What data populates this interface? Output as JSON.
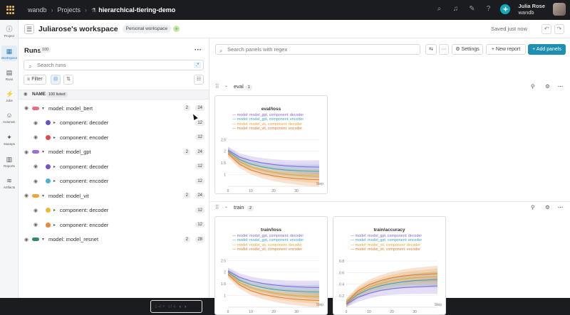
{
  "topbar": {
    "org": "wandb",
    "projects": "Projects",
    "project": "hierarchical-tiering-demo",
    "user_name": "Julia Rose",
    "user_org": "wandb"
  },
  "nav": [
    {
      "label": "Project",
      "icon": "info-icon"
    },
    {
      "label": "Workspace",
      "icon": "workspace-icon"
    },
    {
      "label": "Runs",
      "icon": "table-icon"
    },
    {
      "label": "Jobs",
      "icon": "lightning-icon"
    },
    {
      "label": "Automat.",
      "icon": "robot-icon"
    },
    {
      "label": "Sweeps",
      "icon": "broom-icon"
    },
    {
      "label": "Reports",
      "icon": "document-icon"
    },
    {
      "label": "Artifacts",
      "icon": "layers-icon"
    }
  ],
  "workspace": {
    "title": "Juliarose's workspace",
    "badge": "Personal workspace",
    "saved": "Saved just now"
  },
  "runs": {
    "title": "Runs",
    "count": "100",
    "search_placeholder": "Search runs",
    "regex_label": ".*",
    "filter_label": "Filter",
    "column_name": "NAME",
    "listed": "100 listed",
    "rows": [
      {
        "label": "model: model_bert",
        "c1": "2",
        "c2": "24",
        "color": "#e86c8a",
        "child": false
      },
      {
        "label": "component: decoder",
        "c1": "",
        "c2": "12",
        "color": "#6a4fc8",
        "child": true
      },
      {
        "label": "component: encoder",
        "c1": "",
        "c2": "12",
        "color": "#e24b4b",
        "child": true
      },
      {
        "label": "model: model_gpt",
        "c1": "2",
        "c2": "24",
        "color": "#9b6ee0",
        "child": false
      },
      {
        "label": "component: decoder",
        "c1": "",
        "c2": "12",
        "color": "#7a52cc",
        "child": true
      },
      {
        "label": "component: encoder",
        "c1": "",
        "c2": "12",
        "color": "#4bb3d6",
        "child": true
      },
      {
        "label": "model: model_vit",
        "c1": "2",
        "c2": "24",
        "color": "#f0a63c",
        "child": false
      },
      {
        "label": "component: decoder",
        "c1": "",
        "c2": "12",
        "color": "#f2b53e",
        "child": true
      },
      {
        "label": "component: encoder",
        "c1": "",
        "c2": "12",
        "color": "#e8863a",
        "child": true
      },
      {
        "label": "model: model_resnet",
        "c1": "2",
        "c2": "28",
        "color": "#2f8a6a",
        "child": false
      }
    ],
    "pager_range": "1-4",
    "pager_of": "of 4"
  },
  "panels": {
    "search_placeholder": "Search panels with regex",
    "settings": "Settings",
    "new_report": "New report",
    "add_panels": "Add panels",
    "sections": [
      {
        "name": "eval",
        "count": "1"
      },
      {
        "name": "train",
        "count": "2"
      }
    ]
  },
  "legend": [
    {
      "label": "model: model_gpt, component: decoder",
      "color": "#8b63d6"
    },
    {
      "label": "model: model_gpt, component: encoder",
      "color": "#3aa6c2"
    },
    {
      "label": "model: model_vit, component: decoder",
      "color": "#e8a534"
    },
    {
      "label": "model: model_vit, component: encoder",
      "color": "#e07a2e"
    }
  ],
  "chart_data": [
    {
      "type": "line",
      "title": "eval/loss",
      "xlabel": "Step",
      "ylim": [
        0.5,
        2.6
      ],
      "xlim": [
        0,
        40
      ],
      "xticks": [
        "0",
        "10",
        "20",
        "30"
      ],
      "yticks": [
        "1",
        "1.5",
        "2",
        "2.5"
      ],
      "series": [
        {
          "name": "model: model_gpt, component: decoder",
          "x": [
            0,
            5,
            10,
            15,
            20,
            25,
            30,
            35,
            40
          ],
          "y": [
            2.05,
            1.75,
            1.6,
            1.5,
            1.43,
            1.38,
            1.35,
            1.33,
            1.32
          ]
        },
        {
          "name": "model: model_gpt, component: encoder",
          "x": [
            0,
            5,
            10,
            15,
            20,
            25,
            30,
            35,
            40
          ],
          "y": [
            2.0,
            1.65,
            1.45,
            1.33,
            1.25,
            1.2,
            1.17,
            1.15,
            1.14
          ]
        },
        {
          "name": "model: model_vit, component: decoder",
          "x": [
            0,
            5,
            10,
            15,
            20,
            25,
            30,
            35,
            40
          ],
          "y": [
            1.95,
            1.55,
            1.33,
            1.2,
            1.1,
            1.03,
            0.98,
            0.95,
            0.93
          ]
        },
        {
          "name": "model: model_vit, component: encoder",
          "x": [
            0,
            5,
            10,
            15,
            20,
            25,
            30,
            35,
            40
          ],
          "y": [
            1.9,
            1.45,
            1.2,
            1.05,
            0.95,
            0.88,
            0.83,
            0.8,
            0.78
          ]
        }
      ]
    },
    {
      "type": "line",
      "title": "train/loss",
      "xlabel": "Step",
      "ylim": [
        0.5,
        2.6
      ],
      "xlim": [
        0,
        40
      ],
      "xticks": [
        "0",
        "10",
        "20",
        "30"
      ],
      "yticks": [
        "1",
        "1.5",
        "2",
        "2.5"
      ],
      "series": [
        {
          "name": "model: model_gpt, component: decoder",
          "x": [
            0,
            5,
            10,
            15,
            20,
            25,
            30,
            35,
            40
          ],
          "y": [
            2.05,
            1.78,
            1.62,
            1.52,
            1.45,
            1.4,
            1.37,
            1.35,
            1.34
          ]
        },
        {
          "name": "model: model_gpt, component: encoder",
          "x": [
            0,
            5,
            10,
            15,
            20,
            25,
            30,
            35,
            40
          ],
          "y": [
            2.0,
            1.66,
            1.46,
            1.34,
            1.26,
            1.21,
            1.18,
            1.16,
            1.15
          ]
        },
        {
          "name": "model: model_vit, component: decoder",
          "x": [
            0,
            5,
            10,
            15,
            20,
            25,
            30,
            35,
            40
          ],
          "y": [
            1.95,
            1.56,
            1.34,
            1.21,
            1.11,
            1.04,
            0.99,
            0.96,
            0.94
          ]
        },
        {
          "name": "model: model_vit, component: encoder",
          "x": [
            0,
            5,
            10,
            15,
            20,
            25,
            30,
            35,
            40
          ],
          "y": [
            1.9,
            1.46,
            1.21,
            1.06,
            0.96,
            0.89,
            0.84,
            0.81,
            0.79
          ]
        }
      ]
    },
    {
      "type": "line",
      "title": "train/accuracy",
      "xlabel": "Step",
      "ylim": [
        0,
        0.85
      ],
      "xlim": [
        0,
        40
      ],
      "xticks": [
        "0",
        "10",
        "20",
        "30"
      ],
      "yticks": [
        "0.2",
        "0.4",
        "0.6",
        "0.8"
      ],
      "series": [
        {
          "name": "model: model_gpt, component: decoder",
          "x": [
            0,
            5,
            10,
            15,
            20,
            25,
            30,
            35,
            40
          ],
          "y": [
            0.05,
            0.17,
            0.24,
            0.29,
            0.32,
            0.34,
            0.35,
            0.36,
            0.37
          ]
        },
        {
          "name": "model: model_gpt, component: encoder",
          "x": [
            0,
            5,
            10,
            15,
            20,
            25,
            30,
            35,
            40
          ],
          "y": [
            0.06,
            0.22,
            0.31,
            0.37,
            0.41,
            0.44,
            0.46,
            0.47,
            0.48
          ]
        },
        {
          "name": "model: model_vit, component: decoder",
          "x": [
            0,
            5,
            10,
            15,
            20,
            25,
            30,
            35,
            40
          ],
          "y": [
            0.07,
            0.25,
            0.35,
            0.41,
            0.46,
            0.49,
            0.51,
            0.52,
            0.53
          ]
        },
        {
          "name": "model: model_vit, component: encoder",
          "x": [
            0,
            5,
            10,
            15,
            20,
            25,
            30,
            35,
            40
          ],
          "y": [
            0.08,
            0.28,
            0.39,
            0.46,
            0.51,
            0.54,
            0.56,
            0.57,
            0.58
          ]
        }
      ]
    }
  ]
}
